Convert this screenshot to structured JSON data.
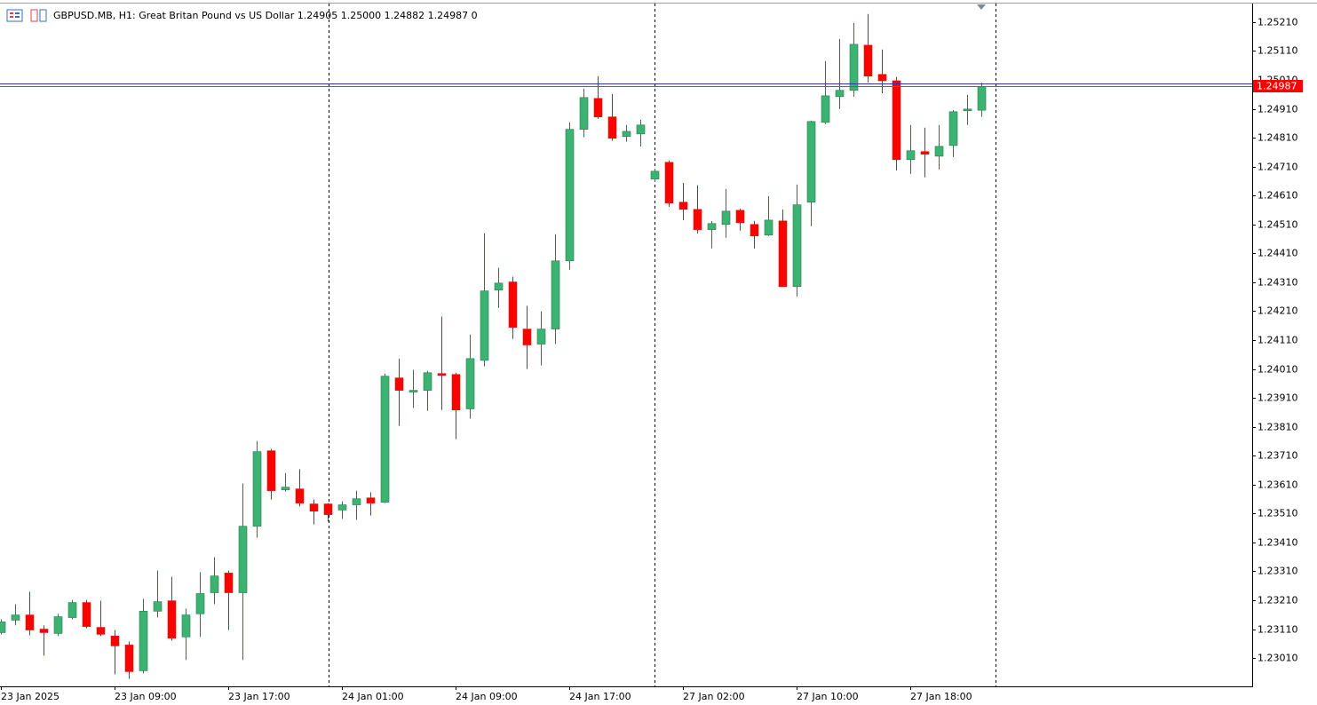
{
  "chart_data": {
    "type": "candlestick",
    "title": "GBPUSD.MB, H1:  Great Britan Pound vs US Dollar  1.24905 1.25000 1.24882 1.24987  0",
    "categories": [
      "23 Jan 2025",
      null,
      null,
      null,
      null,
      null,
      null,
      null,
      "23 Jan 09:00",
      null,
      null,
      null,
      null,
      null,
      null,
      null,
      "23 Jan 17:00",
      null,
      null,
      null,
      null,
      null,
      null,
      null,
      "24 Jan 01:00",
      null,
      null,
      null,
      null,
      null,
      null,
      null,
      "24 Jan 09:00",
      null,
      null,
      null,
      null,
      null,
      null,
      null,
      "24 Jan 17:00",
      null,
      null,
      null,
      null,
      null,
      null,
      null,
      "27 Jan 02:00",
      null,
      null,
      null,
      null,
      null,
      null,
      null,
      "27 Jan 10:00",
      null,
      null,
      null,
      null,
      null,
      null,
      null,
      "27 Jan 18:00",
      null,
      null,
      null,
      null,
      null
    ],
    "open": [
      1.23098,
      1.23141,
      1.23159,
      1.2311,
      1.23095,
      1.2315,
      1.23202,
      1.23116,
      1.23086,
      1.23055,
      1.22966,
      1.23172,
      1.23208,
      1.23083,
      1.23163,
      1.23236,
      1.23304,
      1.23236,
      1.23466,
      1.23727,
      1.23592,
      1.23595,
      1.23543,
      1.23543,
      1.23522,
      1.2354,
      1.23564,
      1.23549,
      1.23979,
      1.2393,
      1.23936,
      1.23994,
      1.23991,
      1.23872,
      1.2404,
      1.24283,
      1.24311,
      1.24148,
      1.24096,
      1.24148,
      1.24384,
      1.24839,
      1.24946,
      1.24882,
      1.24814,
      1.24823,
      1.24667,
      1.24725,
      1.24587,
      1.24562,
      1.24492,
      1.2451,
      1.24559,
      1.2451,
      1.24473,
      1.24522,
      1.24295,
      1.24587,
      1.24863,
      1.24952,
      1.24974,
      1.2513,
      1.25029,
      1.25007,
      1.24734,
      1.24762,
      1.24746,
      1.24783,
      1.24903,
      1.24905
    ],
    "high": [
      1.23144,
      1.23196,
      1.23239,
      1.23123,
      1.23163,
      1.23211,
      1.23211,
      1.23208,
      1.23107,
      1.23067,
      1.23215,
      1.23313,
      1.23291,
      1.23181,
      1.23307,
      1.23359,
      1.23313,
      1.23614,
      1.23761,
      1.23733,
      1.2365,
      1.23663,
      1.23558,
      1.23546,
      1.23552,
      1.23589,
      1.23583,
      1.23994,
      1.24046,
      1.24007,
      1.24003,
      1.24191,
      1.23997,
      1.24129,
      1.24479,
      1.2436,
      1.24329,
      1.24228,
      1.24209,
      1.24476,
      1.24863,
      1.2498,
      1.25023,
      1.24961,
      1.24854,
      1.24872,
      1.24703,
      1.24731,
      1.24654,
      1.24645,
      1.24522,
      1.24633,
      1.24565,
      1.24522,
      1.24608,
      1.24562,
      1.24648,
      1.24869,
      1.25075,
      1.25152,
      1.25207,
      1.25238,
      1.25115,
      1.2502,
      1.24854,
      1.24845,
      1.24854,
      1.24906,
      1.24958,
      1.25
    ],
    "low": [
      1.23092,
      1.23123,
      1.23089,
      1.23018,
      1.23086,
      1.23144,
      1.23113,
      1.23086,
      1.22954,
      1.22938,
      1.22957,
      1.2315,
      1.2307,
      1.23003,
      1.23083,
      1.23196,
      1.23107,
      1.23003,
      1.23426,
      1.23558,
      1.23586,
      1.23534,
      1.23472,
      1.23482,
      1.23491,
      1.23488,
      1.23503,
      1.23546,
      1.23813,
      1.23875,
      1.23865,
      1.23868,
      1.23767,
      1.23838,
      1.24019,
      1.24221,
      1.24114,
      1.2401,
      1.24022,
      1.24096,
      1.24353,
      1.24811,
      1.24875,
      1.24799,
      1.24796,
      1.2478,
      1.24657,
      1.24571,
      1.24525,
      1.24479,
      1.24427,
      1.24464,
      1.24489,
      1.24427,
      1.2447,
      1.24295,
      1.24261,
      1.24504,
      1.24857,
      1.24909,
      1.24952,
      1.25001,
      1.24964,
      1.24697,
      1.24685,
      1.24673,
      1.247,
      1.24743,
      1.24854,
      1.24882
    ],
    "close": [
      1.23135,
      1.23159,
      1.23107,
      1.23098,
      1.23153,
      1.23202,
      1.23119,
      1.23092,
      1.23052,
      1.22963,
      1.23172,
      1.23205,
      1.23079,
      1.23159,
      1.23233,
      1.23294,
      1.23236,
      1.23466,
      1.23724,
      1.23589,
      1.23601,
      1.23546,
      1.23518,
      1.23506,
      1.2354,
      1.23561,
      1.23546,
      1.23985,
      1.23936,
      1.23936,
      1.23997,
      1.23988,
      1.23868,
      1.24046,
      1.2428,
      1.24307,
      1.24154,
      1.24093,
      1.24148,
      1.24384,
      1.24839,
      1.24949,
      1.24882,
      1.24808,
      1.24832,
      1.24854,
      1.24694,
      1.24584,
      1.24562,
      1.24492,
      1.24513,
      1.24556,
      1.24516,
      1.2447,
      1.24525,
      1.24295,
      1.24578,
      1.24866,
      1.24955,
      1.24974,
      1.25133,
      1.25023,
      1.25007,
      1.24734,
      1.24765,
      1.24753,
      1.2478,
      1.249,
      1.24909,
      1.24987
    ],
    "up_color": "#3cb371",
    "down_color": "#ff0000",
    "last_price": 1.24987,
    "ask_price": 1.24998,
    "ylim": [
      1.22912,
      1.25271
    ],
    "yticks": [
      {
        "value": 1.2301,
        "label": "1.23010"
      },
      {
        "value": 1.2311,
        "label": "1.23110"
      },
      {
        "value": 1.2321,
        "label": "1.23210"
      },
      {
        "value": 1.2331,
        "label": "1.23310"
      },
      {
        "value": 1.2341,
        "label": "1.23410"
      },
      {
        "value": 1.2351,
        "label": "1.23510"
      },
      {
        "value": 1.2361,
        "label": "1.23610"
      },
      {
        "value": 1.2371,
        "label": "1.23710"
      },
      {
        "value": 1.2381,
        "label": "1.23810"
      },
      {
        "value": 1.2391,
        "label": "1.23910"
      },
      {
        "value": 1.2401,
        "label": "1.24010"
      },
      {
        "value": 1.2411,
        "label": "1.24110"
      },
      {
        "value": 1.2421,
        "label": "1.24210"
      },
      {
        "value": 1.2431,
        "label": "1.24310"
      },
      {
        "value": 1.2441,
        "label": "1.24410"
      },
      {
        "value": 1.2451,
        "label": "1.24510"
      },
      {
        "value": 1.2461,
        "label": "1.24610"
      },
      {
        "value": 1.2471,
        "label": "1.24710"
      },
      {
        "value": 1.2481,
        "label": "1.24810"
      },
      {
        "value": 1.2491,
        "label": "1.24910"
      },
      {
        "value": 1.2501,
        "label": "1.25010"
      },
      {
        "value": 1.2511,
        "label": "1.25110"
      },
      {
        "value": 1.2521,
        "label": "1.25210"
      }
    ],
    "grid": false
  }
}
